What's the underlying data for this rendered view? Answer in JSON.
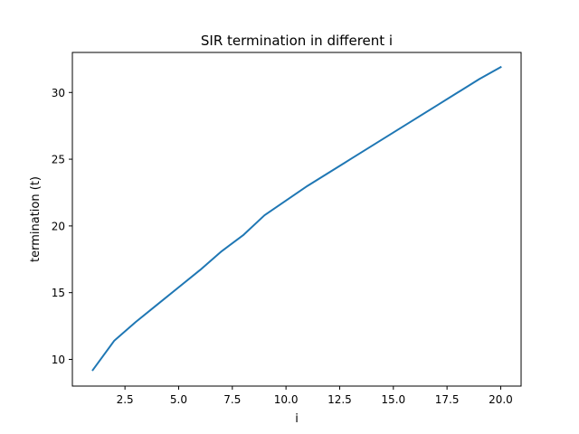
{
  "chart_data": {
    "type": "line",
    "title": "SIR termination in different i",
    "xlabel": "i",
    "ylabel": "termination (t)",
    "xlim": [
      0.05,
      20.95
    ],
    "ylim": [
      8.0,
      33.0
    ],
    "xticks": [
      2.5,
      5.0,
      7.5,
      10.0,
      12.5,
      15.0,
      17.5,
      20.0
    ],
    "xtick_labels": [
      "2.5",
      "5.0",
      "7.5",
      "10.0",
      "12.5",
      "15.0",
      "17.5",
      "20.0"
    ],
    "yticks": [
      10,
      15,
      20,
      25,
      30
    ],
    "ytick_labels": [
      "10",
      "15",
      "20",
      "25",
      "30"
    ],
    "grid": false,
    "series": [
      {
        "color": "#1f77b4",
        "x": [
          1,
          2,
          3,
          4,
          5,
          6,
          7,
          8,
          9,
          10,
          11,
          12,
          13,
          14,
          15,
          16,
          17,
          18,
          19,
          20
        ],
        "y": [
          9.2,
          11.4,
          12.8,
          14.1,
          15.4,
          16.7,
          18.1,
          19.3,
          20.8,
          21.9,
          23.0,
          24.0,
          25.0,
          26.0,
          27.0,
          28.0,
          29.0,
          30.0,
          31.0,
          31.9
        ]
      }
    ]
  }
}
